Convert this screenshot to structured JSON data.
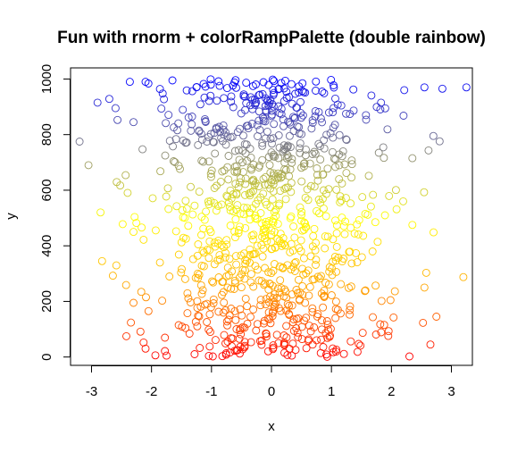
{
  "chart_data": {
    "type": "scatter",
    "title": "Fun with rnorm + colorRampPalette (double rainbow)",
    "xlabel": "x",
    "ylabel": "y",
    "xlim": [
      -3.35,
      3.35
    ],
    "ylim": [
      -30,
      1040
    ],
    "xticks": [
      -3,
      -2,
      -1,
      0,
      1,
      2,
      3
    ],
    "yticks": [
      0,
      200,
      400,
      600,
      800,
      1000
    ],
    "xtick_labels": [
      "-3",
      "-2",
      "-1",
      "0",
      "1",
      "2",
      "3"
    ],
    "ytick_labels": [
      "0",
      "200",
      "400",
      "600",
      "800",
      "1000"
    ],
    "grid": false,
    "point_shape": "open-circle",
    "n_points": 1000,
    "color_ramp": [
      "#ff0000",
      "#ffa500",
      "#ffff00",
      "#808080",
      "#0000ff"
    ],
    "sample_points": [
      {
        "x": -3.2,
        "y": 775
      },
      {
        "x": -3.05,
        "y": 690
      },
      {
        "x": -2.9,
        "y": 915
      },
      {
        "x": -2.6,
        "y": 895
      },
      {
        "x": -2.3,
        "y": 845
      },
      {
        "x": -2.1,
        "y": 990
      },
      {
        "x": -2.85,
        "y": 520
      },
      {
        "x": -2.3,
        "y": 450
      },
      {
        "x": -2.3,
        "y": 195
      },
      {
        "x": -2.05,
        "y": 165
      },
      {
        "x": -2.1,
        "y": 30
      },
      {
        "x": -1.75,
        "y": 5
      },
      {
        "x": 3.25,
        "y": 970
      },
      {
        "x": 2.85,
        "y": 965
      },
      {
        "x": 2.55,
        "y": 970
      },
      {
        "x": 2.7,
        "y": 795
      },
      {
        "x": 2.35,
        "y": 715
      },
      {
        "x": 2.35,
        "y": 475
      },
      {
        "x": 2.55,
        "y": 250
      },
      {
        "x": 2.75,
        "y": 145
      },
      {
        "x": 2.65,
        "y": 45
      },
      {
        "x": 2.3,
        "y": 2
      },
      {
        "x": 0.0,
        "y": 455
      },
      {
        "x": -0.3,
        "y": 440
      }
    ]
  }
}
